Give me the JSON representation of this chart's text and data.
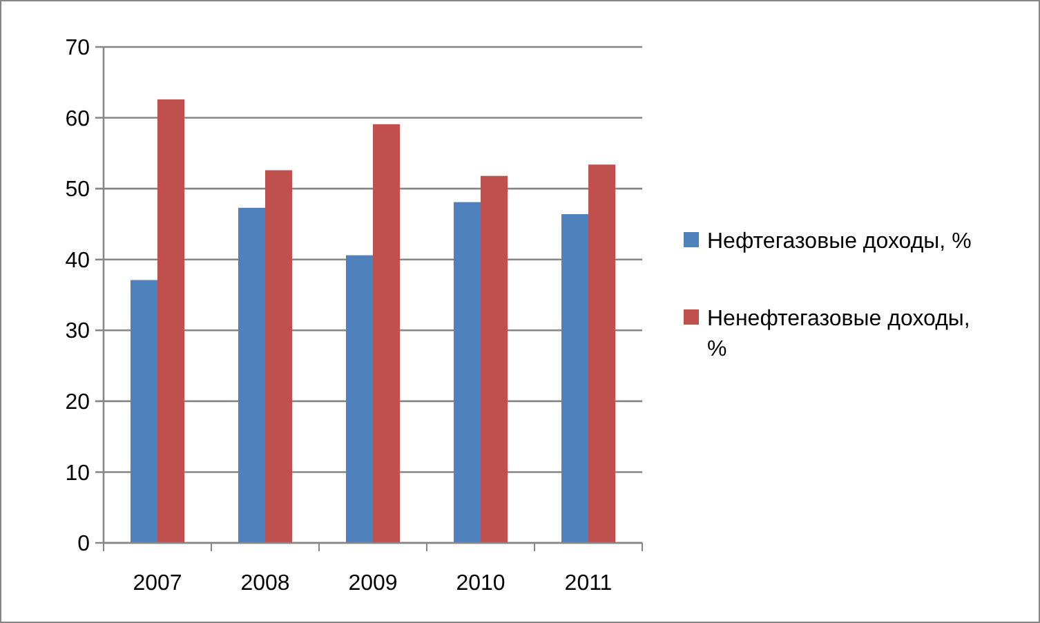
{
  "chart_data": {
    "type": "bar",
    "categories": [
      "2007",
      "2008",
      "2009",
      "2010",
      "2011"
    ],
    "series": [
      {
        "name": "Нефтегазовые доходы, %",
        "color": "#4f81bd",
        "values": [
          37.1,
          47.3,
          40.6,
          48.1,
          46.4
        ]
      },
      {
        "name": "Ненефтегазовые доходы,  %",
        "color": "#c0504d",
        "values": [
          62.6,
          52.6,
          59.1,
          51.8,
          53.4
        ]
      }
    ],
    "ylim": [
      0,
      70
    ],
    "yticks": [
      0,
      10,
      20,
      30,
      40,
      50,
      60,
      70
    ],
    "grid": "y",
    "legend": "right"
  }
}
